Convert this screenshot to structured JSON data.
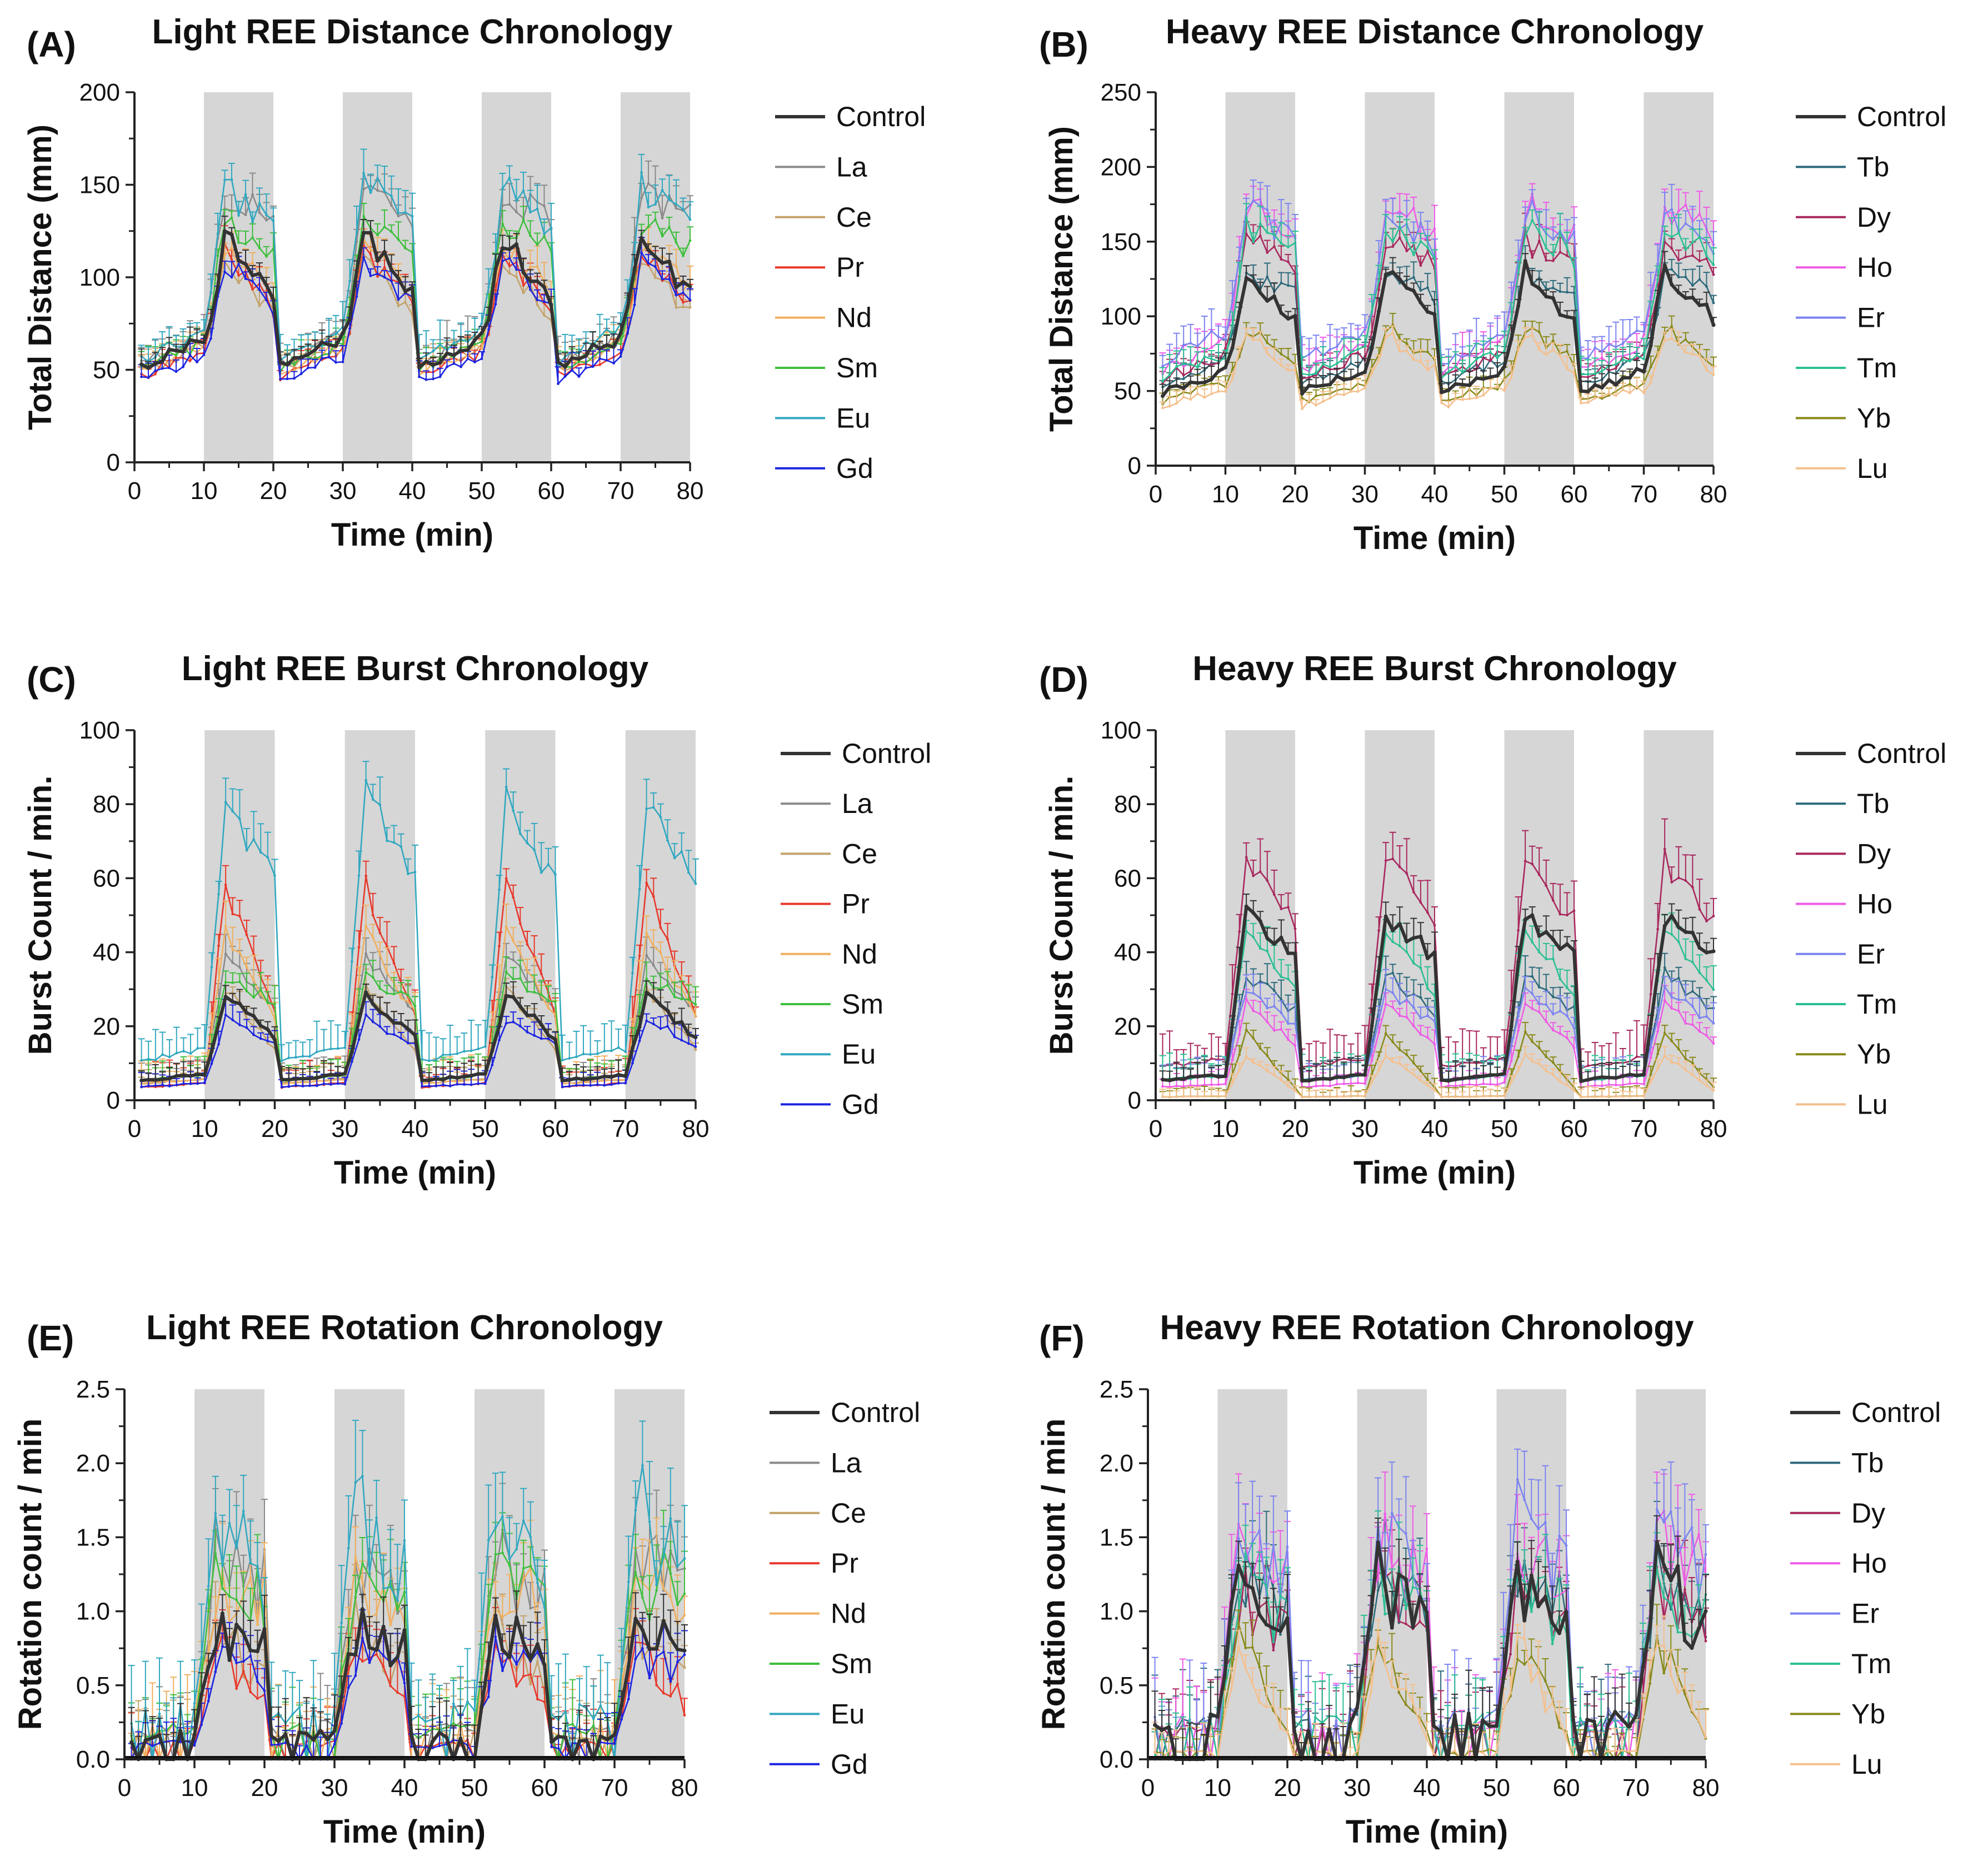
{
  "figure": {
    "background": "#ffffff",
    "shade_color": "#d6d6d6"
  },
  "colors": {
    "Control": "#333333",
    "La": "#8a8a8a",
    "Ce": "#c4a26a",
    "Pr": "#e8392b",
    "Nd": "#f0b060",
    "Sm": "#3fbf3f",
    "Eu": "#32a8c0",
    "Gd": "#1c24e0",
    "Tb": "#2c6a7c",
    "Dy": "#a8285e",
    "Ho": "#ee5ce6",
    "Er": "#7c84f0",
    "Tm": "#2cbf94",
    "Yb": "#8a8a1c",
    "Lu": "#f4c08e"
  },
  "chart_data": [
    {
      "panel": "(A)",
      "type": "line",
      "title": "Light REE Distance Chronology",
      "xlabel": "Time (min)",
      "ylabel": "Total Distance (mm)",
      "xlim": [
        0,
        80
      ],
      "ylim": [
        0,
        200
      ],
      "xticks": [
        0,
        10,
        20,
        30,
        40,
        50,
        60,
        70,
        80
      ],
      "yticks": [
        0,
        50,
        100,
        150,
        200
      ],
      "shaded_intervals": [
        [
          10,
          20
        ],
        [
          30,
          40
        ],
        [
          50,
          60
        ],
        [
          70,
          80
        ]
      ],
      "series": [
        {
          "name": "Control",
          "base": 58,
          "peak": 122,
          "decay": 0.5,
          "err": 6,
          "bold": true
        },
        {
          "name": "La",
          "base": 60,
          "peak": 145,
          "decay": 0.85,
          "err": 9
        },
        {
          "name": "Ce",
          "base": 55,
          "peak": 110,
          "decay": 0.45,
          "err": 7
        },
        {
          "name": "Pr",
          "base": 52,
          "peak": 115,
          "decay": 0.5,
          "err": 7
        },
        {
          "name": "Nd",
          "base": 55,
          "peak": 118,
          "decay": 0.6,
          "err": 8
        },
        {
          "name": "Sm",
          "base": 56,
          "peak": 130,
          "decay": 0.8,
          "err": 7
        },
        {
          "name": "Eu",
          "base": 62,
          "peak": 148,
          "decay": 0.75,
          "err": 10
        },
        {
          "name": "Gd",
          "base": 50,
          "peak": 108,
          "decay": 0.6,
          "err": 7
        }
      ]
    },
    {
      "panel": "(B)",
      "type": "line",
      "title": "Heavy REE Distance Chronology",
      "xlabel": "Time (min)",
      "ylabel": "Total Distance (mm)",
      "xlim": [
        0,
        80
      ],
      "ylim": [
        0,
        250
      ],
      "xticks": [
        0,
        10,
        20,
        30,
        40,
        50,
        60,
        70,
        80
      ],
      "yticks": [
        0,
        50,
        100,
        150,
        200,
        250
      ],
      "shaded_intervals": [
        [
          10,
          20
        ],
        [
          30,
          40
        ],
        [
          50,
          60
        ],
        [
          70,
          80
        ]
      ],
      "series": [
        {
          "name": "Control",
          "base": 55,
          "peak": 132,
          "decay": 0.55,
          "err": 7,
          "bold": true
        },
        {
          "name": "Tb",
          "base": 62,
          "peak": 130,
          "decay": 0.75,
          "err": 8
        },
        {
          "name": "Dy",
          "base": 65,
          "peak": 150,
          "decay": 0.8,
          "err": 9
        },
        {
          "name": "Ho",
          "base": 72,
          "peak": 175,
          "decay": 0.8,
          "err": 12
        },
        {
          "name": "Er",
          "base": 78,
          "peak": 172,
          "decay": 0.75,
          "err": 12
        },
        {
          "name": "Tm",
          "base": 66,
          "peak": 160,
          "decay": 0.8,
          "err": 10
        },
        {
          "name": "Yb",
          "base": 48,
          "peak": 92,
          "decay": 0.5,
          "err": 6
        },
        {
          "name": "Lu",
          "base": 45,
          "peak": 88,
          "decay": 0.45,
          "err": 6
        }
      ]
    },
    {
      "panel": "(C)",
      "type": "line",
      "title": "Light REE Burst Chronology",
      "xlabel": "Time (min)",
      "ylabel": "Burst Count / min.",
      "xlim": [
        0,
        80
      ],
      "ylim": [
        0,
        100
      ],
      "xticks": [
        0,
        10,
        20,
        30,
        40,
        50,
        60,
        70,
        80
      ],
      "yticks": [
        0,
        20,
        40,
        60,
        80,
        100
      ],
      "shaded_intervals": [
        [
          10,
          20
        ],
        [
          30,
          40
        ],
        [
          50,
          60
        ],
        [
          70,
          80
        ]
      ],
      "series": [
        {
          "name": "Control",
          "base": 6,
          "peak": 28,
          "decay": 0.5,
          "err": 3,
          "bold": true
        },
        {
          "name": "La",
          "base": 6,
          "peak": 38,
          "decay": 0.6,
          "err": 4
        },
        {
          "name": "Ce",
          "base": 5,
          "peak": 30,
          "decay": 0.35,
          "err": 3
        },
        {
          "name": "Pr",
          "base": 4,
          "peak": 58,
          "decay": 0.35,
          "err": 5
        },
        {
          "name": "Nd",
          "base": 5,
          "peak": 45,
          "decay": 0.45,
          "err": 5
        },
        {
          "name": "Sm",
          "base": 6,
          "peak": 33,
          "decay": 0.75,
          "err": 4
        },
        {
          "name": "Eu",
          "base": 12,
          "peak": 80,
          "decay": 0.7,
          "err": 6
        },
        {
          "name": "Gd",
          "base": 4,
          "peak": 22,
          "decay": 0.6,
          "err": 3
        }
      ]
    },
    {
      "panel": "(D)",
      "type": "line",
      "title": "Heavy REE Burst Chronology",
      "xlabel": "Time (min)",
      "ylabel": "Burst Count / min.",
      "xlim": [
        0,
        80
      ],
      "ylim": [
        0,
        100
      ],
      "xticks": [
        0,
        10,
        20,
        30,
        40,
        50,
        60,
        70,
        80
      ],
      "yticks": [
        0,
        20,
        40,
        60,
        80,
        100
      ],
      "shaded_intervals": [
        [
          10,
          20
        ],
        [
          30,
          40
        ],
        [
          50,
          60
        ],
        [
          70,
          80
        ]
      ],
      "series": [
        {
          "name": "Control",
          "base": 6,
          "peak": 50,
          "decay": 0.75,
          "err": 4,
          "bold": true
        },
        {
          "name": "Tb",
          "base": 6,
          "peak": 34,
          "decay": 0.65,
          "err": 4
        },
        {
          "name": "Dy",
          "base": 10,
          "peak": 65,
          "decay": 0.7,
          "err": 7
        },
        {
          "name": "Ho",
          "base": 4,
          "peak": 26,
          "decay": 0.5,
          "err": 3
        },
        {
          "name": "Er",
          "base": 6,
          "peak": 30,
          "decay": 0.6,
          "err": 4
        },
        {
          "name": "Tm",
          "base": 6,
          "peak": 45,
          "decay": 0.6,
          "err": 5
        },
        {
          "name": "Yb",
          "base": 1,
          "peak": 18,
          "decay": 0.15,
          "err": 2
        },
        {
          "name": "Lu",
          "base": 1,
          "peak": 12,
          "decay": 0.15,
          "err": 2
        }
      ]
    },
    {
      "panel": "(E)",
      "type": "line",
      "title": "Light REE Rotation Chronology",
      "xlabel": "Time (min)",
      "ylabel": "Rotation count / min",
      "xlim": [
        0,
        80
      ],
      "ylim": [
        0,
        2.5
      ],
      "xticks": [
        0,
        10,
        20,
        30,
        40,
        50,
        60,
        70,
        80
      ],
      "yticks": [
        0.0,
        0.5,
        1.0,
        1.5,
        2.0,
        2.5
      ],
      "shaded_intervals": [
        [
          10,
          20
        ],
        [
          30,
          40
        ],
        [
          50,
          60
        ],
        [
          70,
          80
        ]
      ],
      "series": [
        {
          "name": "Control",
          "base": 0.15,
          "peak": 0.85,
          "decay": 0.85,
          "err": 0.18,
          "bold": true
        },
        {
          "name": "La",
          "base": 0.2,
          "peak": 1.3,
          "decay": 0.9,
          "err": 0.25
        },
        {
          "name": "Ce",
          "base": 0.15,
          "peak": 0.9,
          "decay": 0.5,
          "err": 0.2
        },
        {
          "name": "Pr",
          "base": 0.1,
          "peak": 0.75,
          "decay": 0.4,
          "err": 0.18
        },
        {
          "name": "Nd",
          "base": 0.2,
          "peak": 1.2,
          "decay": 0.85,
          "err": 0.25
        },
        {
          "name": "Sm",
          "base": 0.2,
          "peak": 1.25,
          "decay": 0.85,
          "err": 0.22
        },
        {
          "name": "Eu",
          "base": 0.3,
          "peak": 1.7,
          "decay": 0.65,
          "err": 0.3
        },
        {
          "name": "Gd",
          "base": 0.1,
          "peak": 0.7,
          "decay": 0.8,
          "err": 0.15
        }
      ]
    },
    {
      "panel": "(F)",
      "type": "line",
      "title": "Heavy REE Rotation Chronology",
      "xlabel": "Time (min)",
      "ylabel": "Rotation count / min",
      "xlim": [
        0,
        80
      ],
      "ylim": [
        0,
        2.5
      ],
      "xticks": [
        0,
        10,
        20,
        30,
        40,
        50,
        60,
        70,
        80
      ],
      "yticks": [
        0.0,
        0.5,
        1.0,
        1.5,
        2.0,
        2.5
      ],
      "shaded_intervals": [
        [
          10,
          20
        ],
        [
          30,
          40
        ],
        [
          50,
          60
        ],
        [
          70,
          80
        ]
      ],
      "series": [
        {
          "name": "Control",
          "base": 0.25,
          "peak": 1.25,
          "decay": 0.6,
          "err": 0.22,
          "bold": true
        },
        {
          "name": "Tb",
          "base": 0.25,
          "peak": 1.25,
          "decay": 0.75,
          "err": 0.25
        },
        {
          "name": "Dy",
          "base": 0.2,
          "peak": 1.15,
          "decay": 0.7,
          "err": 0.25
        },
        {
          "name": "Ho",
          "base": 0.25,
          "peak": 1.45,
          "decay": 0.8,
          "err": 0.3
        },
        {
          "name": "Er",
          "base": 0.3,
          "peak": 1.55,
          "decay": 0.75,
          "err": 0.3
        },
        {
          "name": "Tm",
          "base": 0.25,
          "peak": 1.2,
          "decay": 0.7,
          "err": 0.25
        },
        {
          "name": "Yb",
          "base": 0.05,
          "peak": 0.8,
          "decay": 0.15,
          "err": 0.15
        },
        {
          "name": "Lu",
          "base": 0.05,
          "peak": 0.75,
          "decay": 0.15,
          "err": 0.15
        }
      ]
    }
  ]
}
